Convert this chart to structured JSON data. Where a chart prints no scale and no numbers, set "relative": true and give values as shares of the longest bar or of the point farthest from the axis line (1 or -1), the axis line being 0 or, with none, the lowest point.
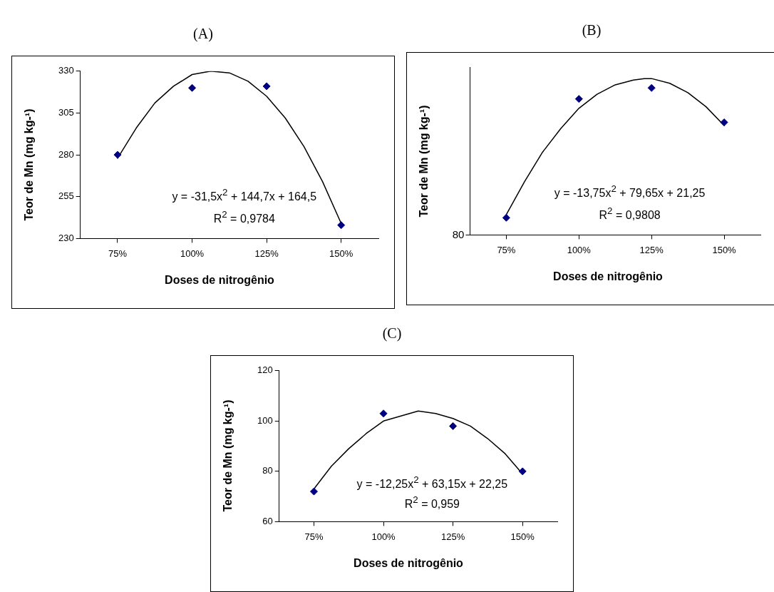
{
  "chart_data": [
    {
      "type": "scatter",
      "title": "(A)",
      "xlabel": "Doses de nitrogênio",
      "ylabel": "Teor de Mn (mg kg-¹)",
      "x": [
        75,
        100,
        125,
        150
      ],
      "xlim": [
        62.5,
        162.5
      ],
      "xticks": [
        {
          "value": 75,
          "label": "75%"
        },
        {
          "value": 100,
          "label": "100%"
        },
        {
          "value": 125,
          "label": "125%"
        },
        {
          "value": 150,
          "label": "150%"
        }
      ],
      "ylim": [
        230,
        330
      ],
      "yticks": [
        230,
        255,
        280,
        305,
        330
      ],
      "grid": false,
      "legend": false,
      "series": [
        {
          "type": "scatter",
          "color": "#000080",
          "marker": "diamond",
          "values": [
            280,
            320,
            321,
            238
          ]
        },
        {
          "type": "line",
          "color": "#000000",
          "marker": "none",
          "x": [
            75,
            81.25,
            87.5,
            93.75,
            100,
            106.25,
            112.5,
            118.75,
            125,
            131.25,
            137.5,
            143.75,
            150
          ],
          "values": [
            278,
            296,
            311,
            321,
            328,
            330,
            329,
            324,
            315,
            302,
            285,
            264,
            239
          ]
        }
      ],
      "annotations": [
        "y = -31,5x$^{2}$ + 144,7x + 164,5",
        "R$^{2}$ = 0,9784"
      ]
    },
    {
      "type": "scatter",
      "title": "(B)",
      "xlabel": "Doses de nitrogênio",
      "ylabel": "Teor de Mn (mg kg-¹)",
      "x": [
        75,
        100,
        125,
        150
      ],
      "xlim": [
        62.5,
        162.5
      ],
      "xticks": [
        {
          "value": 75,
          "label": "75%"
        },
        {
          "value": 100,
          "label": "100%"
        },
        {
          "value": 125,
          "label": "125%"
        },
        {
          "value": 150,
          "label": "150%"
        }
      ],
      "relative": true,
      "grid": false,
      "legend": false,
      "series": [
        {
          "type": "scatter",
          "color": "#000080",
          "marker": "diamond",
          "values": [
            0.11,
            0.87,
            0.94,
            0.72
          ]
        },
        {
          "type": "line",
          "color": "#000000",
          "marker": "none",
          "x": [
            75,
            81.25,
            87.5,
            93.75,
            100,
            106.25,
            112.5,
            118.75,
            122.5,
            125,
            131.25,
            137.5,
            143.75,
            150
          ],
          "values": [
            0.13,
            0.34,
            0.53,
            0.68,
            0.81,
            0.9,
            0.96,
            0.99,
            1,
            1,
            0.97,
            0.91,
            0.82,
            0.7
          ]
        }
      ],
      "annotations": [
        "y = -13,75x$^{2}$ + 79,65x + 21,25",
        "R$^{2}$ = 0,9808",
        "80"
      ]
    },
    {
      "type": "scatter",
      "title": "(C)",
      "xlabel": "Doses de nitrogênio",
      "ylabel": "Teor de Mn (mg kg-¹)",
      "x": [
        75,
        100,
        125,
        150
      ],
      "xlim": [
        62.5,
        162.5
      ],
      "xticks": [
        {
          "value": 75,
          "label": "75%"
        },
        {
          "value": 100,
          "label": "100%"
        },
        {
          "value": 125,
          "label": "125%"
        },
        {
          "value": 150,
          "label": "150%"
        }
      ],
      "ylim": [
        60,
        120
      ],
      "yticks": [
        60,
        80,
        100,
        120
      ],
      "grid": false,
      "legend": false,
      "series": [
        {
          "type": "scatter",
          "color": "#000080",
          "marker": "diamond",
          "values": [
            72,
            103,
            98,
            80
          ]
        },
        {
          "type": "line",
          "color": "#000000",
          "marker": "none",
          "x": [
            75,
            81.25,
            87.5,
            93.75,
            100,
            106.25,
            112.5,
            118.75,
            125,
            131.25,
            137.5,
            143.75,
            150
          ],
          "values": [
            73,
            82,
            89,
            95,
            100,
            102,
            104,
            103,
            101,
            98,
            93,
            87,
            79
          ]
        }
      ],
      "annotations": [
        "y = -12,25x$^{2}$ + 63,15x + 22,25",
        "R$^{2}$ = 0,959"
      ]
    }
  ]
}
